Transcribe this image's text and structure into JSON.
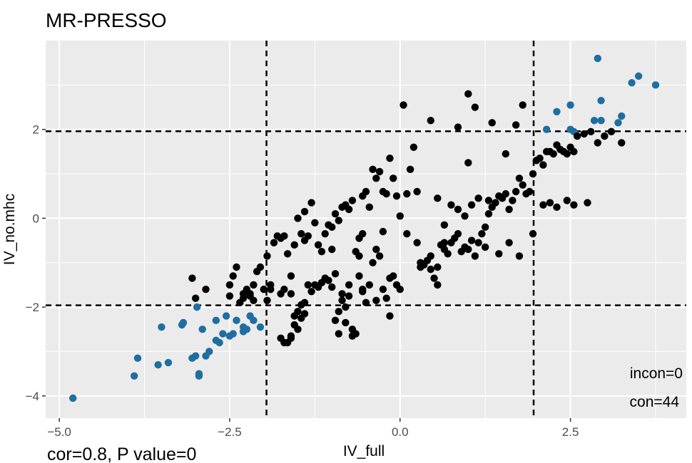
{
  "chart_data": {
    "type": "scatter",
    "title": "MR-PRESSO",
    "xlabel": "IV_full",
    "ylabel": "IV_no.mhc",
    "xlim": [
      -5.2,
      4.2
    ],
    "ylim": [
      -4.5,
      4.0
    ],
    "x_ticks": [
      -5,
      -2.5,
      0,
      2.5
    ],
    "x_tick_labels": [
      "−5.0",
      "−2.5",
      "0.0",
      "2.5"
    ],
    "y_ticks": [
      -4,
      -2,
      0,
      2
    ],
    "y_tick_labels": [
      "−4",
      "−2",
      "0",
      "2"
    ],
    "grid": true,
    "threshold_lines": {
      "x": [
        -1.96,
        1.96
      ],
      "y": [
        -1.96,
        1.96
      ]
    },
    "footer_left": "cor=0.8, P value=0",
    "annotations": [
      "incon=0",
      "con=44"
    ],
    "colors": {
      "consistent": "#1f6e9f",
      "other": "#000000",
      "panel": "#ebebeb",
      "grid": "#ffffff"
    },
    "series": [
      {
        "color": "#1f6e9f",
        "points": [
          [
            -4.8,
            -4.05
          ],
          [
            -3.9,
            -3.55
          ],
          [
            -3.85,
            -3.15
          ],
          [
            -3.55,
            -3.3
          ],
          [
            -3.5,
            -2.45
          ],
          [
            -3.4,
            -3.25
          ],
          [
            -3.2,
            -2.4
          ],
          [
            -3.18,
            -2.35
          ],
          [
            -3.05,
            -3.15
          ],
          [
            -3.0,
            -3.1
          ],
          [
            -2.95,
            -3.5
          ],
          [
            -2.95,
            -3.55
          ],
          [
            -2.9,
            -2.5
          ],
          [
            -2.85,
            -3.1
          ],
          [
            -2.8,
            -3.0
          ],
          [
            -2.7,
            -2.3
          ],
          [
            -2.7,
            -2.75
          ],
          [
            -2.65,
            -2.8
          ],
          [
            -2.6,
            -2.6
          ],
          [
            -2.55,
            -2.2
          ],
          [
            -2.5,
            -2.65
          ],
          [
            -2.45,
            -2.6
          ],
          [
            -2.4,
            -2.3
          ],
          [
            -2.3,
            -2.55
          ],
          [
            -2.3,
            -2.45
          ],
          [
            -2.25,
            -2.5
          ],
          [
            -2.2,
            -2.2
          ],
          [
            -2.15,
            -2.3
          ],
          [
            -2.05,
            -2.45
          ],
          [
            -2.98,
            -2.0
          ],
          [
            2.15,
            2.0
          ],
          [
            2.3,
            2.4
          ],
          [
            2.5,
            2.55
          ],
          [
            2.5,
            2.0
          ],
          [
            2.55,
            1.95
          ],
          [
            2.85,
            2.2
          ],
          [
            2.95,
            2.2
          ],
          [
            2.9,
            3.6
          ],
          [
            2.95,
            2.65
          ],
          [
            3.2,
            2.15
          ],
          [
            3.25,
            2.3
          ],
          [
            3.4,
            3.05
          ],
          [
            3.5,
            3.2
          ],
          [
            3.75,
            3.0
          ]
        ]
      },
      {
        "color": "#000000",
        "points": [
          [
            -3.05,
            -1.35
          ],
          [
            -3.0,
            -1.8
          ],
          [
            -2.85,
            -1.6
          ],
          [
            -2.5,
            -1.75
          ],
          [
            -2.45,
            -1.3
          ],
          [
            -2.4,
            -1.1
          ],
          [
            -2.35,
            -1.9
          ],
          [
            -2.3,
            -1.8
          ],
          [
            -2.25,
            -1.6
          ],
          [
            -2.2,
            -1.7
          ],
          [
            -2.15,
            -1.5
          ],
          [
            -2.15,
            -1.85
          ],
          [
            -2.1,
            -1.2
          ],
          [
            -2.05,
            -1.1
          ],
          [
            -2.0,
            -1.6
          ],
          [
            -1.95,
            -1.85
          ],
          [
            -1.95,
            -0.85
          ],
          [
            -1.9,
            -1.5
          ],
          [
            -1.85,
            -0.55
          ],
          [
            -1.8,
            -0.4
          ],
          [
            -1.75,
            -0.45
          ],
          [
            -1.7,
            -0.4
          ],
          [
            -1.65,
            -0.8
          ],
          [
            -1.6,
            -1.3
          ],
          [
            -1.55,
            -0.6
          ],
          [
            -1.5,
            0.0
          ],
          [
            -1.45,
            -0.35
          ],
          [
            -1.4,
            0.15
          ],
          [
            -1.4,
            -0.5
          ],
          [
            -1.35,
            -0.4
          ],
          [
            -1.3,
            0.35
          ],
          [
            -1.25,
            -0.1
          ],
          [
            -1.2,
            -0.6
          ],
          [
            -1.15,
            -0.75
          ],
          [
            -1.1,
            -0.35
          ],
          [
            -1.05,
            -0.15
          ],
          [
            -1.0,
            -0.2
          ],
          [
            -0.95,
            0.1
          ],
          [
            -0.9,
            -0.05
          ],
          [
            -0.85,
            0.25
          ],
          [
            -0.8,
            0.3
          ],
          [
            -0.75,
            0.2
          ],
          [
            -0.7,
            0.4
          ],
          [
            -0.65,
            -0.75
          ],
          [
            -0.6,
            -0.85
          ],
          [
            -1.75,
            -1.7
          ],
          [
            -1.7,
            -1.6
          ],
          [
            -1.6,
            -1.7
          ],
          [
            -1.55,
            -2.2
          ],
          [
            -1.5,
            -2.1
          ],
          [
            -1.45,
            -1.95
          ],
          [
            -1.4,
            -1.9
          ],
          [
            -1.35,
            -1.5
          ],
          [
            -1.3,
            -1.65
          ],
          [
            -1.25,
            -1.5
          ],
          [
            -1.2,
            -1.55
          ],
          [
            -1.15,
            -1.45
          ],
          [
            -1.1,
            -1.35
          ],
          [
            -1.05,
            -1.4
          ],
          [
            -1.0,
            -1.55
          ],
          [
            -0.95,
            -1.25
          ],
          [
            -0.9,
            -2.1
          ],
          [
            -0.85,
            -1.85
          ],
          [
            -0.8,
            -2.0
          ],
          [
            -0.75,
            -1.5
          ],
          [
            -0.7,
            -2.5
          ],
          [
            -0.65,
            -2.6
          ],
          [
            -0.6,
            -1.3
          ],
          [
            -0.55,
            -1.6
          ],
          [
            -0.5,
            -1.9
          ],
          [
            -0.45,
            -1.5
          ],
          [
            -0.4,
            -1.0
          ],
          [
            -0.35,
            -0.7
          ],
          [
            -0.3,
            -0.85
          ],
          [
            -0.25,
            -1.6
          ],
          [
            -0.2,
            -1.8
          ],
          [
            -0.15,
            -2.2
          ],
          [
            -0.1,
            -1.3
          ],
          [
            -0.05,
            -1.5
          ],
          [
            0.0,
            -1.6
          ],
          [
            -1.75,
            -2.7
          ],
          [
            -1.7,
            -2.8
          ],
          [
            -1.65,
            -2.8
          ],
          [
            -1.6,
            -2.65
          ],
          [
            -1.6,
            -2.7
          ],
          [
            -1.55,
            -2.4
          ],
          [
            -1.5,
            -2.5
          ],
          [
            -1.45,
            -2.25
          ],
          [
            -1.4,
            -2.15
          ],
          [
            -0.95,
            -2.3
          ],
          [
            -0.9,
            -2.6
          ],
          [
            -0.8,
            -2.35
          ],
          [
            -0.7,
            -2.65
          ],
          [
            -0.6,
            -0.45
          ],
          [
            -0.55,
            0.5
          ],
          [
            -0.5,
            0.6
          ],
          [
            -0.45,
            0.25
          ],
          [
            -0.4,
            1.1
          ],
          [
            -0.35,
            0.9
          ],
          [
            -0.3,
            1.05
          ],
          [
            -0.25,
            0.6
          ],
          [
            -0.2,
            0.55
          ],
          [
            -0.15,
            1.35
          ],
          [
            -0.1,
            0.9
          ],
          [
            -0.05,
            0.5
          ],
          [
            0.0,
            0.05
          ],
          [
            0.05,
            2.55
          ],
          [
            0.1,
            0.55
          ],
          [
            0.15,
            1.1
          ],
          [
            0.2,
            1.6
          ],
          [
            0.25,
            0.6
          ],
          [
            0.3,
            -1.0
          ],
          [
            0.35,
            -1.05
          ],
          [
            0.4,
            -0.95
          ],
          [
            0.45,
            -1.15
          ],
          [
            0.5,
            -1.35
          ],
          [
            0.55,
            -1.5
          ],
          [
            0.6,
            -0.6
          ],
          [
            0.65,
            -0.7
          ],
          [
            0.7,
            -0.8
          ],
          [
            0.75,
            -0.55
          ],
          [
            0.8,
            -0.45
          ],
          [
            0.85,
            -0.35
          ],
          [
            0.9,
            -0.75
          ],
          [
            0.95,
            -0.65
          ],
          [
            1.0,
            -0.7
          ],
          [
            1.05,
            -0.5
          ],
          [
            1.1,
            -0.85
          ],
          [
            1.15,
            -0.55
          ],
          [
            1.2,
            -0.35
          ],
          [
            1.25,
            -0.2
          ],
          [
            1.3,
            0.1
          ],
          [
            1.35,
            0.25
          ],
          [
            1.4,
            0.35
          ],
          [
            1.45,
            0.5
          ],
          [
            1.5,
            0.45
          ],
          [
            1.55,
            0.55
          ],
          [
            1.6,
            0.2
          ],
          [
            1.65,
            0.4
          ],
          [
            1.7,
            0.6
          ],
          [
            1.75,
            0.9
          ],
          [
            1.8,
            0.75
          ],
          [
            1.85,
            0.55
          ],
          [
            1.9,
            0.6
          ],
          [
            1.95,
            1.0
          ],
          [
            2.0,
            1.3
          ],
          [
            2.05,
            1.35
          ],
          [
            2.1,
            1.2
          ],
          [
            2.15,
            1.5
          ],
          [
            2.2,
            1.5
          ],
          [
            2.25,
            1.45
          ],
          [
            2.3,
            1.65
          ],
          [
            2.35,
            1.55
          ],
          [
            2.4,
            1.5
          ],
          [
            2.45,
            1.45
          ],
          [
            2.5,
            1.6
          ],
          [
            2.55,
            1.5
          ],
          [
            2.6,
            1.85
          ],
          [
            2.7,
            1.9
          ],
          [
            2.8,
            1.95
          ],
          [
            2.9,
            1.7
          ],
          [
            3.0,
            1.85
          ],
          [
            3.1,
            1.95
          ],
          [
            3.25,
            1.7
          ],
          [
            1.0,
            2.8
          ],
          [
            1.1,
            2.5
          ],
          [
            1.35,
            2.15
          ],
          [
            1.55,
            1.45
          ],
          [
            1.7,
            2.1
          ],
          [
            1.8,
            2.55
          ],
          [
            0.45,
            2.2
          ],
          [
            0.85,
            2.05
          ],
          [
            1.0,
            1.25
          ],
          [
            -0.55,
            -0.35
          ],
          [
            -0.25,
            -0.3
          ],
          [
            0.1,
            -0.35
          ],
          [
            0.25,
            -0.55
          ],
          [
            0.45,
            -0.85
          ],
          [
            0.55,
            -1.1
          ],
          [
            0.65,
            -0.55
          ],
          [
            2.1,
            0.3
          ],
          [
            2.2,
            0.35
          ],
          [
            2.3,
            0.25
          ],
          [
            2.45,
            0.4
          ],
          [
            2.55,
            0.3
          ],
          [
            2.75,
            0.35
          ],
          [
            1.95,
            -0.35
          ],
          [
            1.3,
            0.4
          ],
          [
            1.15,
            0.45
          ],
          [
            1.05,
            0.3
          ],
          [
            0.95,
            0.05
          ],
          [
            0.85,
            0.2
          ],
          [
            0.75,
            0.3
          ],
          [
            -2.3,
            -1.7
          ],
          [
            -2.2,
            -1.75
          ],
          [
            -2.5,
            -1.5
          ],
          [
            -1.9,
            -1.6
          ],
          [
            -1.0,
            -0.7
          ],
          [
            -0.85,
            -1.7
          ],
          [
            -0.75,
            -1.75
          ],
          [
            -0.55,
            -1.65
          ],
          [
            -0.35,
            -1.85
          ],
          [
            -0.15,
            -1.35
          ],
          [
            0.3,
            -1.1
          ],
          [
            0.55,
            0.45
          ],
          [
            0.65,
            -0.15
          ],
          [
            1.25,
            -0.65
          ],
          [
            1.45,
            -0.8
          ],
          [
            1.6,
            -0.55
          ],
          [
            1.75,
            -0.85
          ]
        ]
      }
    ]
  }
}
